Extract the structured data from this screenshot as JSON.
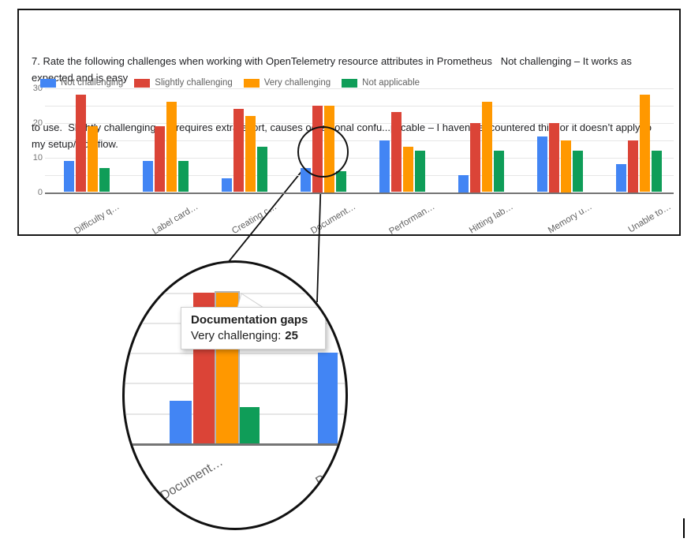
{
  "header": {
    "title_lines": [
      "7. Rate the following challenges when working with OpenTelemetry resource attributes in Prometheus   Not challenging – It works as expected and is easy",
      "to use.  Slightly challenging – It requires extra effort, causes occasional confu...plicable – I haven’t encountered this, or it doesn’t apply to my setup/workflow."
    ]
  },
  "chart_data": {
    "type": "bar",
    "title": "7. Rate the following challenges when working with OpenTelemetry resource attributes in Prometheus",
    "categories": [
      "Difficulty q…",
      "Label card…",
      "Creating c…",
      "Document…",
      "Performan…",
      "Hitting lab…",
      "Memory u…",
      "Unable to…"
    ],
    "series": [
      {
        "name": "Not challenging",
        "color": "#4285f4",
        "values": [
          9,
          9,
          4,
          7,
          15,
          5,
          16,
          8
        ]
      },
      {
        "name": "Slightly challenging",
        "color": "#db4437",
        "values": [
          28,
          19,
          24,
          25,
          23,
          20,
          20,
          15
        ]
      },
      {
        "name": "Very challenging",
        "color": "#ff9800",
        "values": [
          19,
          26,
          22,
          25,
          13,
          26,
          15,
          28
        ]
      },
      {
        "name": "Not applicable",
        "color": "#0f9d58",
        "values": [
          7,
          9,
          13,
          6,
          12,
          12,
          12,
          12
        ]
      }
    ],
    "ylim": [
      0,
      30
    ],
    "yticks": [
      0,
      10,
      20,
      30
    ],
    "gridlines_every": 5,
    "grid": true,
    "legend_position": "top-left"
  },
  "callout": {
    "tooltip_title": "Documentation gaps",
    "tooltip_series": "Very challenging:",
    "tooltip_value": "25",
    "magnified_category": "Document…",
    "magnified_partial_category": "Perfo",
    "highlighted_series": "Very challenging",
    "highlighted_value": 25
  }
}
